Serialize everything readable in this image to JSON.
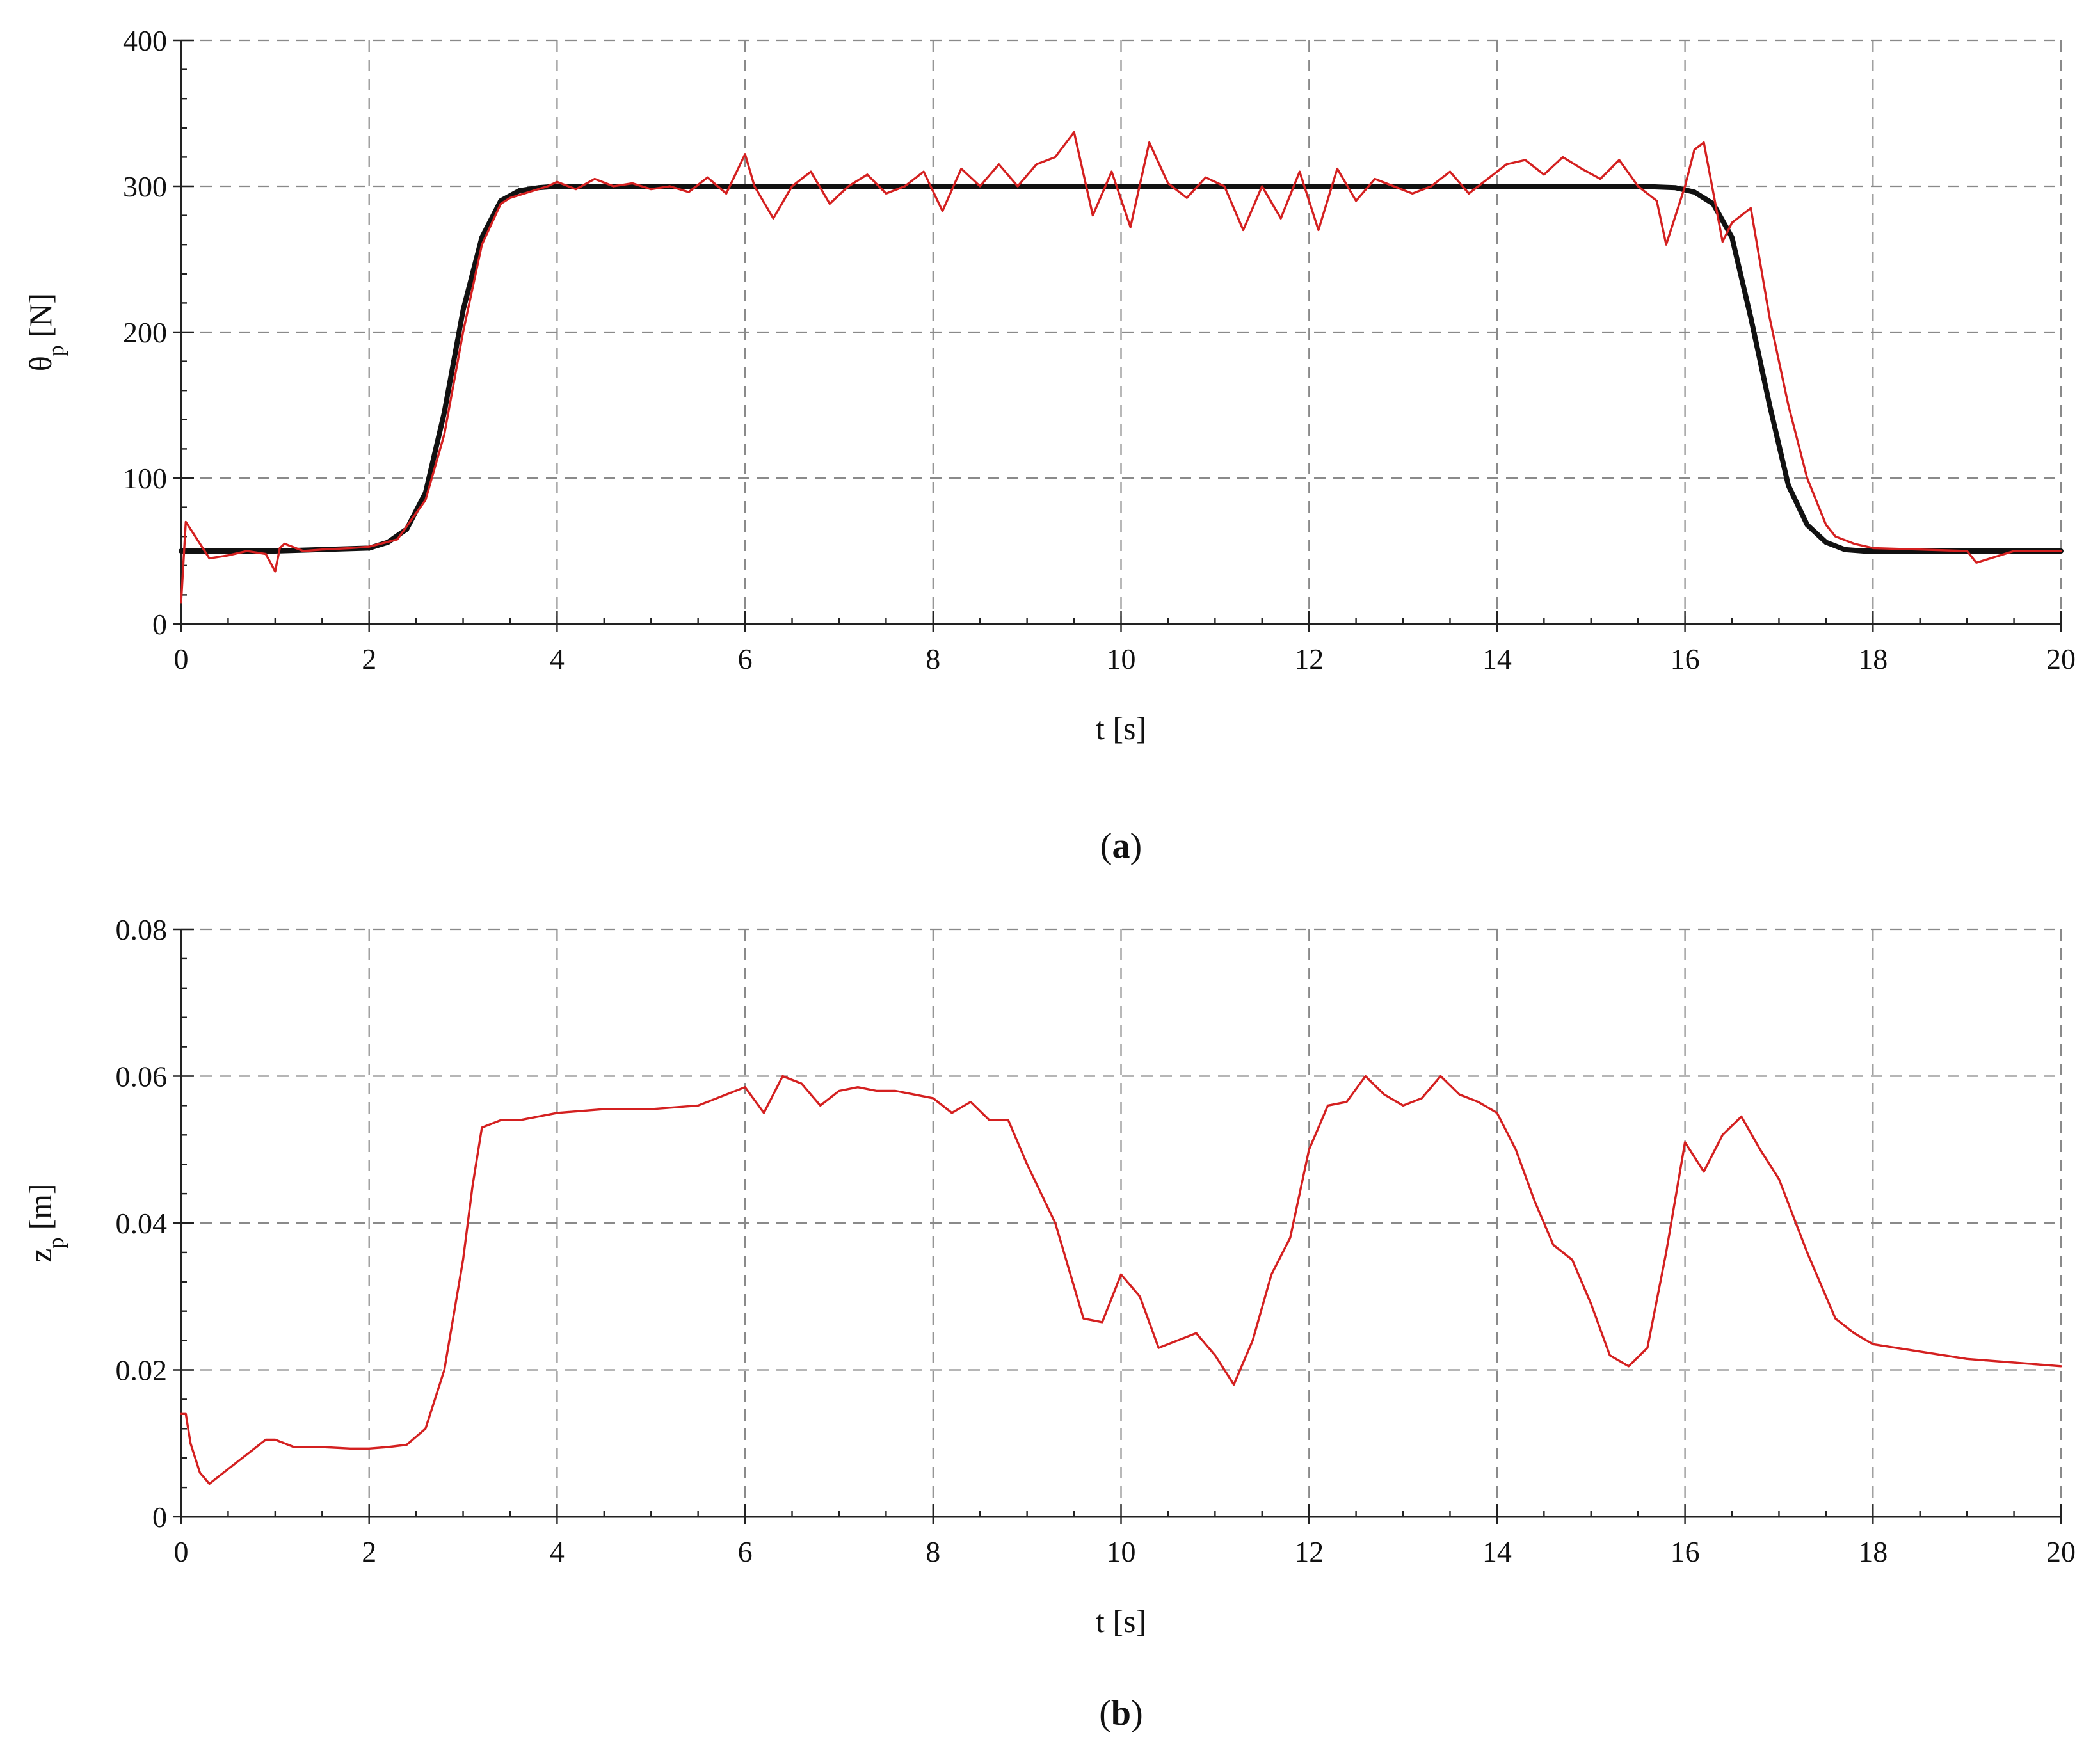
{
  "chart_data": [
    {
      "type": "line",
      "caption_letter": "a",
      "xlabel": "t [s]",
      "ylabel_main": "θ",
      "ylabel_sub": "p",
      "ylabel_unit": "[N]",
      "xlim": [
        0,
        20
      ],
      "ylim": [
        0,
        400
      ],
      "xticks": [
        0,
        2,
        4,
        6,
        8,
        10,
        12,
        14,
        16,
        18,
        20
      ],
      "yticks": [
        0,
        100,
        200,
        300,
        400
      ],
      "ytick_labels": [
        "0",
        "100",
        "200",
        "300",
        "400"
      ],
      "grid": true,
      "series": [
        {
          "color": "#111111",
          "x": [
            0,
            1,
            2,
            2.2,
            2.4,
            2.6,
            2.8,
            3.0,
            3.2,
            3.4,
            3.6,
            3.8,
            4.0,
            6,
            8,
            10,
            12,
            14,
            15.5,
            15.9,
            16.1,
            16.3,
            16.5,
            16.7,
            16.9,
            17.1,
            17.3,
            17.5,
            17.7,
            17.9,
            18,
            20
          ],
          "y": [
            50,
            50,
            52,
            56,
            65,
            90,
            145,
            215,
            265,
            290,
            297,
            299,
            300,
            300,
            300,
            300,
            300,
            300,
            300,
            299,
            296,
            288,
            265,
            210,
            150,
            95,
            68,
            56,
            51,
            50,
            50,
            50
          ]
        },
        {
          "color": "#d42020",
          "x": [
            0,
            0.05,
            0.1,
            0.2,
            0.3,
            0.5,
            0.7,
            0.9,
            1.0,
            1.05,
            1.1,
            1.3,
            1.5,
            1.8,
            2.0,
            2.3,
            2.6,
            2.8,
            3.0,
            3.2,
            3.4,
            3.5,
            3.7,
            3.9,
            4.0,
            4.2,
            4.4,
            4.6,
            4.8,
            5.0,
            5.2,
            5.4,
            5.6,
            5.8,
            6.0,
            6.1,
            6.3,
            6.5,
            6.7,
            6.9,
            7.1,
            7.3,
            7.5,
            7.7,
            7.9,
            8.1,
            8.3,
            8.5,
            8.7,
            8.9,
            9.1,
            9.3,
            9.5,
            9.7,
            9.9,
            10.1,
            10.3,
            10.5,
            10.7,
            10.9,
            11.1,
            11.3,
            11.5,
            11.7,
            11.9,
            12.1,
            12.3,
            12.5,
            12.7,
            12.9,
            13.1,
            13.3,
            13.5,
            13.7,
            13.9,
            14.1,
            14.3,
            14.5,
            14.7,
            14.9,
            15.1,
            15.3,
            15.5,
            15.7,
            15.8,
            16.0,
            16.1,
            16.2,
            16.4,
            16.5,
            16.7,
            16.9,
            17.1,
            17.3,
            17.5,
            17.6,
            17.8,
            18.0,
            18.5,
            19.0,
            19.1,
            19.5,
            20.0
          ],
          "y": [
            15,
            70,
            65,
            55,
            45,
            47,
            50,
            48,
            36,
            52,
            55,
            50,
            51,
            52,
            53,
            58,
            85,
            130,
            200,
            260,
            288,
            292,
            296,
            300,
            303,
            298,
            305,
            300,
            302,
            298,
            300,
            296,
            306,
            295,
            322,
            300,
            278,
            300,
            310,
            288,
            300,
            308,
            295,
            300,
            310,
            283,
            312,
            300,
            315,
            300,
            315,
            320,
            337,
            280,
            310,
            272,
            330,
            302,
            292,
            306,
            300,
            270,
            300,
            278,
            310,
            270,
            312,
            290,
            305,
            300,
            295,
            300,
            310,
            295,
            305,
            315,
            318,
            308,
            320,
            312,
            305,
            318,
            300,
            290,
            260,
            300,
            325,
            330,
            262,
            275,
            285,
            210,
            150,
            100,
            68,
            60,
            55,
            52,
            51,
            50,
            42,
            50,
            50
          ]
        }
      ]
    },
    {
      "type": "line",
      "caption_letter": "b",
      "xlabel": "t [s]",
      "ylabel_main": "z",
      "ylabel_sub": "p",
      "ylabel_unit": "[m]",
      "xlim": [
        0,
        20
      ],
      "ylim": [
        0,
        0.08
      ],
      "xticks": [
        0,
        2,
        4,
        6,
        8,
        10,
        12,
        14,
        16,
        18,
        20
      ],
      "yticks": [
        0,
        0.02,
        0.04,
        0.06,
        0.08
      ],
      "ytick_labels": [
        "0",
        "0.02",
        "0.04",
        "0.06",
        "0.08"
      ],
      "grid": true,
      "series": [
        {
          "color": "#d42020",
          "x": [
            0,
            0.05,
            0.1,
            0.2,
            0.3,
            0.5,
            0.7,
            0.9,
            1.0,
            1.2,
            1.5,
            1.8,
            2.0,
            2.2,
            2.4,
            2.6,
            2.8,
            3.0,
            3.1,
            3.2,
            3.4,
            3.6,
            4.0,
            4.5,
            5.0,
            5.5,
            5.8,
            6.0,
            6.2,
            6.4,
            6.6,
            6.8,
            7.0,
            7.2,
            7.4,
            7.6,
            7.8,
            8.0,
            8.2,
            8.4,
            8.6,
            8.8,
            9.0,
            9.3,
            9.6,
            9.8,
            10.0,
            10.2,
            10.4,
            10.6,
            10.8,
            11.0,
            11.2,
            11.4,
            11.6,
            11.8,
            12.0,
            12.2,
            12.4,
            12.6,
            12.8,
            13.0,
            13.2,
            13.4,
            13.6,
            13.8,
            14.0,
            14.2,
            14.4,
            14.6,
            14.8,
            15.0,
            15.2,
            15.4,
            15.6,
            15.8,
            16.0,
            16.2,
            16.4,
            16.6,
            16.8,
            17.0,
            17.3,
            17.6,
            17.8,
            18.0,
            18.5,
            19.0,
            19.5,
            20.0
          ],
          "y": [
            0.014,
            0.014,
            0.01,
            0.006,
            0.0045,
            0.0065,
            0.0085,
            0.0105,
            0.0105,
            0.0095,
            0.0095,
            0.0093,
            0.0093,
            0.0095,
            0.0098,
            0.012,
            0.02,
            0.035,
            0.045,
            0.053,
            0.054,
            0.054,
            0.055,
            0.0555,
            0.0555,
            0.056,
            0.0575,
            0.0585,
            0.055,
            0.06,
            0.059,
            0.056,
            0.058,
            0.0585,
            0.058,
            0.058,
            0.0575,
            0.057,
            0.055,
            0.0565,
            0.054,
            0.054,
            0.048,
            0.04,
            0.027,
            0.0265,
            0.033,
            0.03,
            0.023,
            0.024,
            0.025,
            0.022,
            0.018,
            0.024,
            0.033,
            0.038,
            0.05,
            0.056,
            0.0565,
            0.06,
            0.0575,
            0.056,
            0.057,
            0.06,
            0.0575,
            0.0565,
            0.055,
            0.05,
            0.043,
            0.037,
            0.035,
            0.029,
            0.022,
            0.0205,
            0.023,
            0.036,
            0.051,
            0.047,
            0.052,
            0.0545,
            0.05,
            0.046,
            0.036,
            0.027,
            0.025,
            0.0235,
            0.0225,
            0.0215,
            0.021,
            0.0205
          ]
        }
      ]
    }
  ]
}
